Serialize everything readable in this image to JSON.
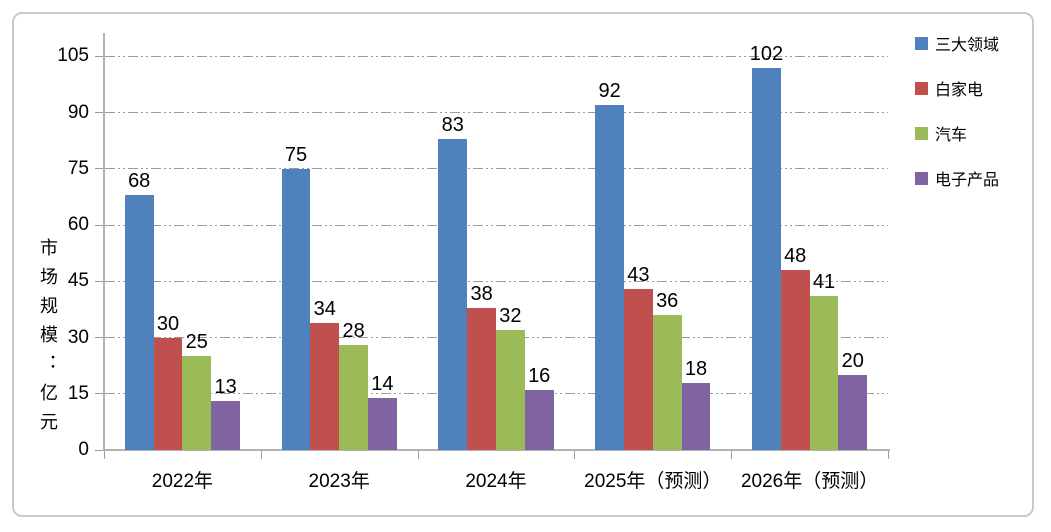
{
  "chart_data": {
    "type": "bar",
    "title": "",
    "xlabel": "",
    "ylabel": "市场规模：亿元",
    "categories": [
      "2022年",
      "2023年",
      "2024年",
      "2025年（预测）",
      "2026年（预测）"
    ],
    "series": [
      {
        "name": "三大领域",
        "color": "#4F81BD",
        "values": [
          68,
          75,
          83,
          92,
          102
        ]
      },
      {
        "name": "白家电",
        "color": "#C0504D",
        "values": [
          30,
          34,
          38,
          43,
          48
        ]
      },
      {
        "name": "汽车",
        "color": "#9BBB59",
        "values": [
          25,
          28,
          32,
          36,
          41
        ]
      },
      {
        "name": "电子产品",
        "color": "#8064A2",
        "values": [
          13,
          14,
          16,
          18,
          20
        ]
      }
    ],
    "y_ticks": [
      0,
      15,
      30,
      45,
      60,
      75,
      90,
      105
    ],
    "ylim": [
      0,
      112
    ],
    "grid": true,
    "grid_style": "dash-dot-dot",
    "legend_position": "right",
    "data_labels": true
  },
  "colors": {
    "gridline": "#9b9b9b",
    "axis": "#b3b3b3",
    "frame_border": "#c9c9c9",
    "text": "#000000"
  }
}
